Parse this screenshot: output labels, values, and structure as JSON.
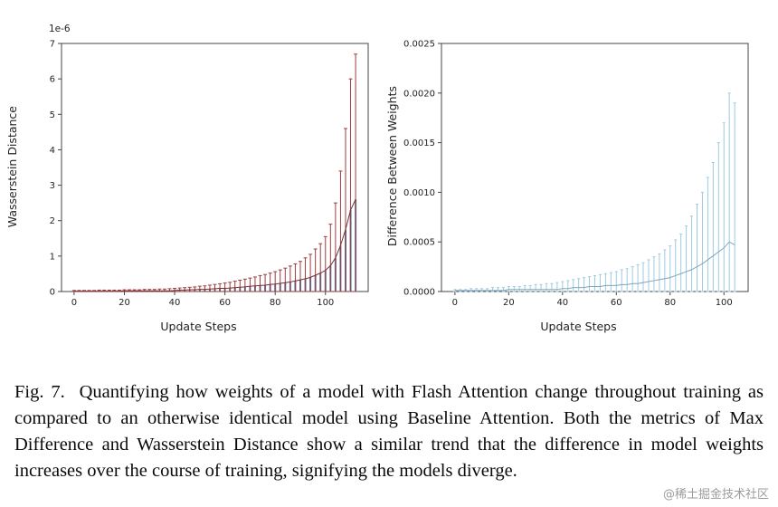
{
  "caption": {
    "label": "Fig. 7.",
    "text": "Quantifying how weights of a model with Flash Attention change throughout training as compared to an otherwise identical model using Baseline Attention. Both the metrics of Max Difference and Wasserstein Distance show a similar trend that the difference in model weights increases over the course of training, signifying the models diverge."
  },
  "watermark": "@稀土掘金技术社区",
  "chart_data": [
    {
      "type": "errorbar",
      "title": "",
      "xlabel": "Update Steps",
      "ylabel": "Wasserstein Distance",
      "offset_label": "1e-6",
      "xlim": [
        -5,
        117
      ],
      "ylim": [
        0,
        7
      ],
      "grid": false,
      "legend": "none",
      "xticks": [
        0,
        20,
        40,
        60,
        80,
        100
      ],
      "xtick_labels": [
        "0",
        "20",
        "40",
        "60",
        "80",
        "100"
      ],
      "yticks": [
        0,
        1,
        2,
        3,
        4,
        5,
        6,
        7
      ],
      "ytick_labels": [
        "0",
        "1",
        "2",
        "3",
        "4",
        "5",
        "6",
        "7"
      ],
      "x": [
        0,
        2,
        4,
        6,
        8,
        10,
        12,
        14,
        16,
        18,
        20,
        22,
        24,
        26,
        28,
        30,
        32,
        34,
        36,
        38,
        40,
        42,
        44,
        46,
        48,
        50,
        52,
        54,
        56,
        58,
        60,
        62,
        64,
        66,
        68,
        70,
        72,
        74,
        76,
        78,
        80,
        82,
        84,
        86,
        88,
        90,
        92,
        94,
        96,
        98,
        100,
        102,
        104,
        106,
        108,
        110,
        112
      ],
      "bars": {
        "color": "#4277a8",
        "values": [
          0.01,
          0.01,
          0.01,
          0.01,
          0.01,
          0.01,
          0.01,
          0.01,
          0.01,
          0.01,
          0.02,
          0.02,
          0.02,
          0.02,
          0.02,
          0.02,
          0.02,
          0.02,
          0.02,
          0.02,
          0.03,
          0.04,
          0.04,
          0.05,
          0.05,
          0.06,
          0.06,
          0.07,
          0.08,
          0.09,
          0.09,
          0.1,
          0.11,
          0.12,
          0.13,
          0.15,
          0.16,
          0.17,
          0.18,
          0.2,
          0.21,
          0.23,
          0.25,
          0.27,
          0.3,
          0.33,
          0.36,
          0.4,
          0.46,
          0.52,
          0.6,
          0.73,
          0.95,
          1.3,
          1.75,
          2.3,
          2.6
        ]
      },
      "errorbars": {
        "color": "#9c3d3d",
        "cap": 2,
        "top": [
          0.03,
          0.03,
          0.03,
          0.03,
          0.03,
          0.04,
          0.04,
          0.04,
          0.04,
          0.04,
          0.05,
          0.05,
          0.05,
          0.05,
          0.06,
          0.06,
          0.06,
          0.07,
          0.07,
          0.08,
          0.09,
          0.1,
          0.11,
          0.12,
          0.13,
          0.15,
          0.16,
          0.18,
          0.2,
          0.22,
          0.24,
          0.26,
          0.29,
          0.32,
          0.35,
          0.38,
          0.41,
          0.45,
          0.48,
          0.52,
          0.56,
          0.61,
          0.66,
          0.72,
          0.78,
          0.85,
          0.95,
          1.05,
          1.2,
          1.35,
          1.55,
          1.9,
          2.5,
          3.4,
          4.6,
          6.0,
          6.7
        ]
      },
      "mean": {
        "color": "#7c2f2f",
        "values": [
          0.01,
          0.01,
          0.01,
          0.01,
          0.01,
          0.01,
          0.01,
          0.01,
          0.01,
          0.01,
          0.02,
          0.02,
          0.02,
          0.02,
          0.02,
          0.02,
          0.02,
          0.02,
          0.02,
          0.02,
          0.03,
          0.04,
          0.04,
          0.05,
          0.05,
          0.06,
          0.06,
          0.07,
          0.08,
          0.09,
          0.09,
          0.1,
          0.11,
          0.12,
          0.13,
          0.15,
          0.16,
          0.17,
          0.18,
          0.2,
          0.21,
          0.23,
          0.25,
          0.27,
          0.3,
          0.33,
          0.36,
          0.4,
          0.46,
          0.52,
          0.6,
          0.73,
          0.95,
          1.3,
          1.75,
          2.3,
          2.6
        ]
      }
    },
    {
      "type": "errorbar",
      "title": "",
      "xlabel": "Update Steps",
      "ylabel": "Difference Between Weights",
      "offset_label": "",
      "xlim": [
        -5,
        109
      ],
      "ylim": [
        0,
        0.0025
      ],
      "grid": false,
      "legend": "none",
      "xticks": [
        0,
        20,
        40,
        60,
        80,
        100
      ],
      "xtick_labels": [
        "0",
        "20",
        "40",
        "60",
        "80",
        "100"
      ],
      "yticks": [
        0,
        0.0005,
        0.001,
        0.0015,
        0.002,
        0.0025
      ],
      "ytick_labels": [
        "0.0000",
        "0.0005",
        "0.0010",
        "0.0015",
        "0.0020",
        "0.0025"
      ],
      "x": [
        0,
        2,
        4,
        6,
        8,
        10,
        12,
        14,
        16,
        18,
        20,
        22,
        24,
        26,
        28,
        30,
        32,
        34,
        36,
        38,
        40,
        42,
        44,
        46,
        48,
        50,
        52,
        54,
        56,
        58,
        60,
        62,
        64,
        66,
        68,
        70,
        72,
        74,
        76,
        78,
        80,
        82,
        84,
        86,
        88,
        90,
        92,
        94,
        96,
        98,
        100,
        102,
        104
      ],
      "errorbars": {
        "color": "#9ecae1",
        "cap": 1.5,
        "top": [
          2e-05,
          2e-05,
          2e-05,
          3e-05,
          3e-05,
          3e-05,
          3e-05,
          4e-05,
          4e-05,
          4e-05,
          5e-05,
          5e-05,
          5e-05,
          6e-05,
          6e-05,
          7e-05,
          7e-05,
          8e-05,
          8e-05,
          9e-05,
          0.0001,
          0.00011,
          0.00012,
          0.00013,
          0.00014,
          0.00015,
          0.00016,
          0.00017,
          0.00018,
          0.00019,
          0.0002,
          0.00022,
          0.00023,
          0.00025,
          0.00027,
          0.00029,
          0.00032,
          0.00035,
          0.00038,
          0.00042,
          0.00046,
          0.00052,
          0.00058,
          0.00066,
          0.00076,
          0.00088,
          0.001,
          0.00115,
          0.0013,
          0.0015,
          0.0017,
          0.002,
          0.0019
        ]
      },
      "mean": {
        "color": "#7da7ba",
        "values": [
          1e-05,
          1e-05,
          1e-05,
          1e-05,
          1e-05,
          1e-05,
          1e-05,
          1e-05,
          1e-05,
          1e-05,
          2e-05,
          2e-05,
          2e-05,
          2e-05,
          2e-05,
          2e-05,
          2e-05,
          2e-05,
          2e-05,
          2e-05,
          3e-05,
          3e-05,
          4e-05,
          4e-05,
          4e-05,
          5e-05,
          5e-05,
          5e-05,
          6e-05,
          6e-05,
          6e-05,
          7e-05,
          7e-05,
          8e-05,
          8e-05,
          9e-05,
          0.0001,
          0.00011,
          0.00012,
          0.00013,
          0.00014,
          0.00016,
          0.00018,
          0.0002,
          0.00022,
          0.00025,
          0.00028,
          0.00032,
          0.00036,
          0.0004,
          0.00044,
          0.0005,
          0.00047
        ]
      }
    }
  ]
}
